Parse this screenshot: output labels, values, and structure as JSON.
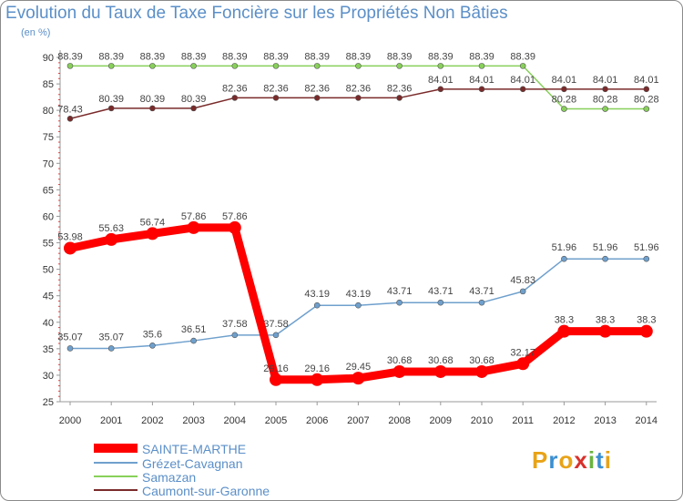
{
  "chart_data": {
    "type": "line",
    "title": "Evolution du Taux de Taxe Foncière sur les Propriétés Non Bâties",
    "unit": "(en %)",
    "xlabel": "",
    "ylabel": "",
    "ylim": [
      25,
      90
    ],
    "yticks": [
      25,
      30,
      35,
      40,
      45,
      50,
      55,
      60,
      65,
      70,
      75,
      80,
      85,
      90
    ],
    "grid": false,
    "legend_position": "bottom-left",
    "x": [
      "2000",
      "2001",
      "2002",
      "2003",
      "2004",
      "2005",
      "2006",
      "2007",
      "2008",
      "2009",
      "2010",
      "2011",
      "2012",
      "2013",
      "2014"
    ],
    "series": [
      {
        "name": "SAINTE-MARTHE",
        "color": "#ff0000",
        "values": [
          53.98,
          55.63,
          56.74,
          57.86,
          57.86,
          29.16,
          29.16,
          29.45,
          30.68,
          30.68,
          30.68,
          32.17,
          38.3,
          38.3,
          38.3
        ],
        "labels": [
          "53.98",
          "55.63",
          "56.74",
          "57.86",
          "57.86",
          "29.16",
          "29.16",
          "29.45",
          "30.68",
          "30.68",
          "30.68",
          "32.17",
          "38.3",
          "38.3",
          "38.3"
        ]
      },
      {
        "name": "Grézet-Cavagnan",
        "color": "#6fa0cd",
        "values": [
          35.07,
          35.07,
          35.6,
          36.51,
          37.58,
          37.58,
          43.19,
          43.19,
          43.71,
          43.71,
          43.71,
          45.83,
          51.96,
          51.96,
          51.96
        ],
        "labels": [
          "35.07",
          "35.07",
          "35.6",
          "36.51",
          "37.58",
          "37.58",
          "43.19",
          "43.19",
          "43.71",
          "43.71",
          "43.71",
          "45.83",
          "51.96",
          "51.96",
          "51.96"
        ]
      },
      {
        "name": "Samazan",
        "color": "#88d05a",
        "values": [
          88.39,
          88.39,
          88.39,
          88.39,
          88.39,
          88.39,
          88.39,
          88.39,
          88.39,
          88.39,
          88.39,
          88.39,
          80.28,
          80.28,
          80.28
        ],
        "labels": [
          "88.39",
          "88.39",
          "88.39",
          "88.39",
          "88.39",
          "88.39",
          "88.39",
          "88.39",
          "88.39",
          "88.39",
          "88.39",
          "88.39",
          "80.28",
          "80.28",
          "80.28"
        ]
      },
      {
        "name": "Caumont-sur-Garonne",
        "color": "#7a2a2a",
        "values": [
          78.43,
          80.39,
          80.39,
          80.39,
          82.36,
          82.36,
          82.36,
          82.36,
          82.36,
          84.01,
          84.01,
          84.01,
          84.01,
          84.01,
          84.01
        ],
        "labels": [
          "78.43",
          "80.39",
          "80.39",
          "80.39",
          "82.36",
          "82.36",
          "82.36",
          "82.36",
          "82.36",
          "84.01",
          "84.01",
          "84.01",
          "84.01",
          "84.01",
          "84.01"
        ]
      }
    ]
  }
}
